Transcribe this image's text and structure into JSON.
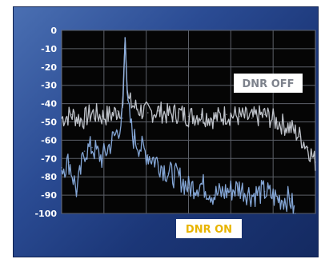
{
  "chart_data": {
    "type": "line",
    "title": "",
    "xlabel": "",
    "ylabel": "",
    "ylim": [
      -100,
      0
    ],
    "yticks": [
      "0",
      "-10",
      "-20",
      "-30",
      "-40",
      "-50",
      "-60",
      "-70",
      "-80",
      "-90",
      "-100"
    ],
    "grid": true,
    "x_range": [
      0,
      1
    ],
    "series": [
      {
        "name": "DNR OFF",
        "color": "#c8ccd4",
        "x": [
          0.0,
          0.04,
          0.08,
          0.12,
          0.16,
          0.2,
          0.22,
          0.24,
          0.25,
          0.26,
          0.28,
          0.3,
          0.34,
          0.38,
          0.42,
          0.46,
          0.5,
          0.55,
          0.6,
          0.65,
          0.7,
          0.75,
          0.8,
          0.85,
          0.9,
          0.94,
          0.97,
          1.0
        ],
        "values": [
          -48,
          -46,
          -49,
          -45,
          -47,
          -46,
          -44,
          -42,
          -4,
          -38,
          -41,
          -43,
          -45,
          -44,
          -46,
          -45,
          -47,
          -46,
          -48,
          -46,
          -47,
          -48,
          -46,
          -50,
          -53,
          -58,
          -64,
          -72
        ]
      },
      {
        "name": "DNR ON",
        "color": "#8aaee0",
        "x": [
          0.0,
          0.03,
          0.06,
          0.09,
          0.12,
          0.16,
          0.2,
          0.22,
          0.24,
          0.25,
          0.26,
          0.28,
          0.3,
          0.34,
          0.38,
          0.42,
          0.46,
          0.5,
          0.55,
          0.6,
          0.65,
          0.7,
          0.75,
          0.8,
          0.85,
          0.9,
          0.92
        ],
        "values": [
          -75,
          -72,
          -88,
          -66,
          -64,
          -70,
          -60,
          -55,
          -48,
          -4,
          -40,
          -58,
          -62,
          -68,
          -72,
          -78,
          -80,
          -86,
          -84,
          -90,
          -88,
          -86,
          -90,
          -88,
          -92,
          -92,
          -100
        ]
      }
    ]
  }
}
